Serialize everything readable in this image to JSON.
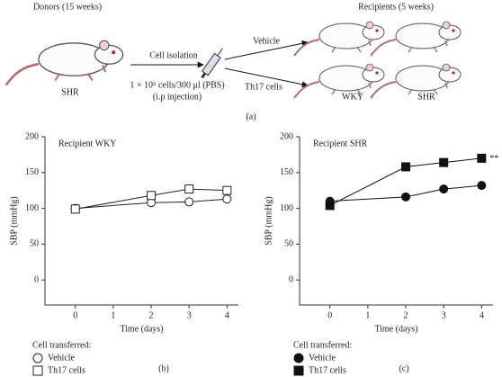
{
  "diagram": {
    "donors_label": "Donors (15 weeks)",
    "recipients_label": "Recipients (5 weeks)",
    "donor_strain": "SHR",
    "step": "Cell isolation",
    "dose": "1 × 10⁵ cells/300 μl (PBS)",
    "route": "(i.p injection)",
    "arrow_top": "Vehicle",
    "arrow_bottom": "Th17 cells",
    "recipient_left": "WKY",
    "recipient_right": "SHR",
    "panel_label": "(a)"
  },
  "chart_data": [
    {
      "type": "line",
      "title": "Recipient WKY",
      "x_label": "Time (days)",
      "y_label": "SBP (mmHg)",
      "panel_label": "(b)",
      "legend_title": "Cell transferred:",
      "x": [
        0,
        2,
        3,
        4
      ],
      "xlim": [
        -0.8,
        4.3
      ],
      "xticks": [
        0,
        1,
        2,
        3,
        4
      ],
      "ylim": [
        -35,
        200
      ],
      "yticks": [
        0,
        50,
        100,
        150,
        200
      ],
      "grid": false,
      "series": [
        {
          "name": "Vehicle",
          "color": "#222222",
          "marker": "circle",
          "fill": "#ffffff",
          "values": [
            100,
            108,
            109,
            113
          ]
        },
        {
          "name": "Th17 cells",
          "color": "#222222",
          "marker": "square",
          "fill": "#ffffff",
          "values": [
            99,
            118,
            127,
            125
          ]
        }
      ]
    },
    {
      "type": "line",
      "title": "Recipient SHR",
      "x_label": "Time (days)",
      "y_label": "SBP (mmHg)",
      "panel_label": "(c)",
      "legend_title": "Cell transferred:",
      "annotation": "**",
      "x": [
        0,
        2,
        3,
        4
      ],
      "xlim": [
        -0.8,
        4.3
      ],
      "xticks": [
        0,
        1,
        2,
        3,
        4
      ],
      "ylim": [
        -35,
        200
      ],
      "yticks": [
        0,
        50,
        100,
        150,
        200
      ],
      "grid": false,
      "series": [
        {
          "name": "Vehicle",
          "color": "#111111",
          "marker": "circle",
          "fill": "#111111",
          "values": [
            110,
            116,
            127,
            132
          ]
        },
        {
          "name": "Th17 cells",
          "color": "#111111",
          "marker": "square",
          "fill": "#111111",
          "values": [
            104,
            158,
            164,
            170
          ]
        }
      ]
    }
  ]
}
